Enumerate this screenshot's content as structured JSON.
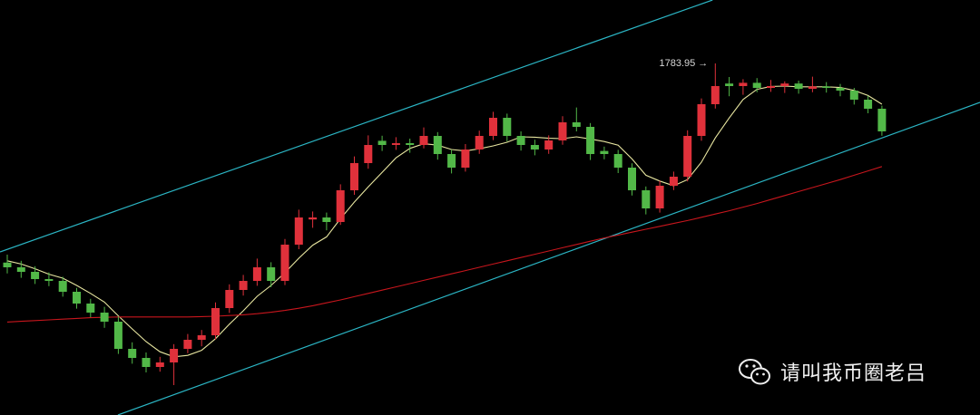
{
  "chart_data": {
    "type": "candlestick",
    "ylim": [
      1686.95,
      1801.45
    ],
    "up_color": "#e0313b",
    "down_color": "#52b848",
    "open": [
      1729.0,
      1727.7,
      1726.45,
      1724.45,
      1723.95,
      1720.95,
      1717.7,
      1715.2,
      1712.7,
      1705.2,
      1702.7,
      1700.2,
      1701.45,
      1705.2,
      1707.7,
      1708.95,
      1716.45,
      1721.45,
      1723.95,
      1727.7,
      1723.95,
      1733.95,
      1740.9,
      1741.45,
      1740.2,
      1748.95,
      1756.45,
      1762.6,
      1761.45,
      1761.95,
      1761.45,
      1763.95,
      1758.95,
      1755.2,
      1760.2,
      1763.95,
      1768.95,
      1763.95,
      1761.45,
      1760.2,
      1762.7,
      1767.7,
      1766.45,
      1759.8,
      1758.95,
      1755.2,
      1748.95,
      1743.95,
      1750.2,
      1752.7,
      1763.95,
      1772.7,
      1778.4,
      1777.7,
      1778.6,
      1777.2,
      1777.7,
      1778.4,
      1776.95,
      1777.6,
      1777.2,
      1776.45,
      1773.95,
      1771.45
    ],
    "high": [
      1731.2,
      1729.5,
      1728.0,
      1726.3,
      1725.1,
      1722.0,
      1719.0,
      1716.8,
      1714.1,
      1707.0,
      1704.2,
      1703.0,
      1706.5,
      1709.3,
      1710.4,
      1718.0,
      1723.0,
      1725.6,
      1730.1,
      1729.1,
      1735.5,
      1743.6,
      1743.1,
      1742.8,
      1750.6,
      1758.3,
      1764.1,
      1764.0,
      1763.6,
      1763.2,
      1766.3,
      1765.0,
      1760.2,
      1761.7,
      1765.4,
      1770.6,
      1770.1,
      1765.2,
      1762.9,
      1764.1,
      1769.4,
      1771.8,
      1767.5,
      1761.0,
      1760.1,
      1756.4,
      1750.0,
      1751.6,
      1754.1,
      1765.5,
      1774.3,
      1783.95,
      1780.2,
      1779.6,
      1779.9,
      1779.4,
      1779.0,
      1779.2,
      1780.3,
      1778.8,
      1778.3,
      1777.2,
      1775.0,
      1772.3
    ],
    "low": [
      1726.0,
      1724.8,
      1723.1,
      1722.5,
      1719.6,
      1716.3,
      1713.9,
      1711.0,
      1703.8,
      1701.1,
      1698.7,
      1698.9,
      1695.2,
      1704.0,
      1705.9,
      1707.8,
      1715.1,
      1719.9,
      1722.6,
      1722.2,
      1722.8,
      1732.7,
      1738.6,
      1737.9,
      1739.4,
      1747.7,
      1754.9,
      1759.8,
      1760.1,
      1759.3,
      1760.5,
      1757.4,
      1753.6,
      1754.1,
      1759.0,
      1762.8,
      1762.4,
      1759.9,
      1758.6,
      1759.0,
      1761.5,
      1765.2,
      1757.3,
      1757.5,
      1753.7,
      1747.5,
      1742.3,
      1742.8,
      1749.0,
      1751.4,
      1762.6,
      1771.5,
      1774.9,
      1775.3,
      1776.0,
      1776.1,
      1775.8,
      1775.6,
      1776.0,
      1775.9,
      1774.9,
      1772.6,
      1770.2,
      1764.0
    ],
    "close": [
      1727.7,
      1726.45,
      1724.45,
      1723.95,
      1720.95,
      1717.7,
      1715.2,
      1712.7,
      1705.2,
      1702.7,
      1700.2,
      1701.45,
      1705.2,
      1707.7,
      1708.95,
      1716.45,
      1721.45,
      1723.95,
      1727.7,
      1723.95,
      1733.95,
      1741.45,
      1741.45,
      1740.2,
      1748.95,
      1756.45,
      1761.45,
      1761.45,
      1761.95,
      1761.45,
      1763.95,
      1758.95,
      1755.2,
      1760.2,
      1763.95,
      1768.95,
      1763.95,
      1761.45,
      1760.2,
      1762.7,
      1767.7,
      1766.45,
      1758.95,
      1758.95,
      1755.2,
      1748.95,
      1743.95,
      1750.2,
      1752.7,
      1763.95,
      1772.7,
      1777.7,
      1777.7,
      1778.6,
      1777.2,
      1777.7,
      1778.4,
      1776.95,
      1777.6,
      1777.2,
      1776.45,
      1773.95,
      1771.45,
      1765.2
    ],
    "lines": [
      {
        "color": "#e8e6a0",
        "values": [
          1729.5,
          1728.6,
          1727.3,
          1725.8,
          1724.7,
          1722.7,
          1720.5,
          1718.1,
          1714.3,
          1710.7,
          1707.2,
          1704.4,
          1703.0,
          1703.4,
          1704.8,
          1708.0,
          1712.0,
          1715.7,
          1719.7,
          1722.7,
          1726.2,
          1730.2,
          1733.8,
          1736.1,
          1741.1,
          1745.7,
          1749.9,
          1753.9,
          1757.9,
          1760.5,
          1761.8,
          1761.4,
          1760.2,
          1759.8,
          1760.4,
          1761.2,
          1762.2,
          1763.7,
          1763.6,
          1763.3,
          1763.2,
          1763.7,
          1763.1,
          1762.4,
          1761.4,
          1757.6,
          1753.1,
          1751.5,
          1750.2,
          1751.9,
          1756.7,
          1763.4,
          1768.9,
          1774.0,
          1776.8,
          1777.6,
          1777.7,
          1777.5,
          1777.5,
          1777.5,
          1777.3,
          1776.5,
          1775.1,
          1772.7
        ]
      },
      {
        "color": "#c8161d",
        "values": [
          1712.6,
          1712.8,
          1713.0,
          1713.2,
          1713.4,
          1713.6,
          1713.8,
          1713.9,
          1714.0,
          1714.0,
          1714.0,
          1714.0,
          1714.0,
          1714.0,
          1714.1,
          1714.2,
          1714.4,
          1714.6,
          1714.9,
          1715.3,
          1715.8,
          1716.4,
          1717.1,
          1717.9,
          1718.7,
          1719.6,
          1720.5,
          1721.4,
          1722.3,
          1723.2,
          1724.1,
          1725.0,
          1725.9,
          1726.8,
          1727.7,
          1728.6,
          1729.5,
          1730.4,
          1731.3,
          1732.2,
          1733.1,
          1734.0,
          1734.9,
          1735.8,
          1736.6,
          1737.4,
          1738.2,
          1739.0,
          1739.8,
          1740.6,
          1741.5,
          1742.4,
          1743.3,
          1744.3,
          1745.3,
          1746.4,
          1747.5,
          1748.6,
          1749.7,
          1750.8,
          1751.9,
          1753.1,
          1754.3,
          1755.5
        ]
      }
    ],
    "channel": [
      {
        "color": "#2bb5c4",
        "x": [
          -0.52,
          50.8
        ],
        "y": [
          1731.95,
          1801.45
        ]
      },
      {
        "color": "#2bb5c4",
        "x": [
          7.97,
          70.07
        ],
        "y": [
          1686.95,
          1773.2
        ]
      }
    ],
    "annotations": [
      {
        "text": "1783.95 →",
        "value": 1783.95
      }
    ]
  },
  "watermark": "请叫我币圈老吕"
}
